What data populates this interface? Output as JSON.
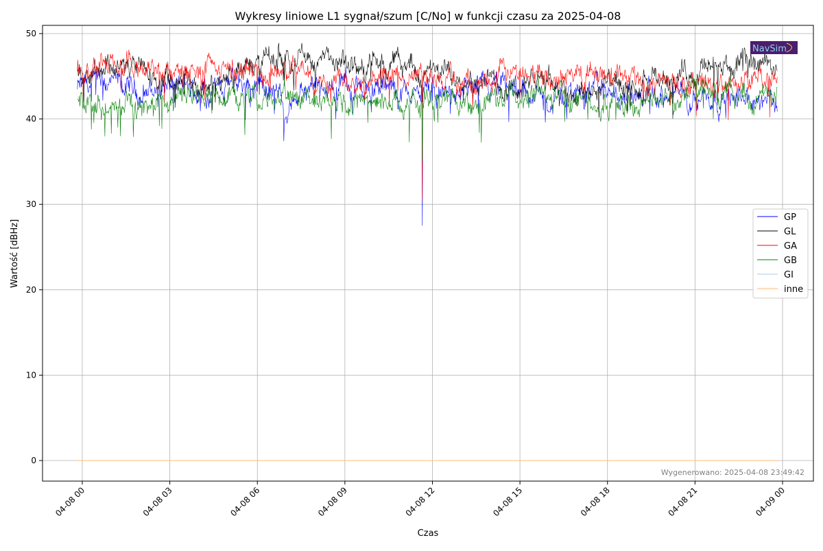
{
  "chart_data": {
    "type": "line",
    "title": "Wykresy liniowe L1 sygnał/szum [C/No] w funkcji czasu za 2025-04-08",
    "xlabel": "Czas",
    "ylabel": "Wartość [dBHz]",
    "x_unit": "hours since 2025-04-08 00:00",
    "xlim": [
      -0.45,
      25.0
    ],
    "ylim": [
      -2.5,
      51
    ],
    "grid": true,
    "legend_position": "center-right",
    "x_ticks": [
      0,
      3,
      6,
      9,
      12,
      15,
      18,
      21,
      24
    ],
    "x_tick_labels": [
      "04-08 00",
      "04-08 03",
      "04-08 06",
      "04-08 09",
      "04-08 12",
      "04-08 15",
      "04-08 18",
      "04-08 21",
      "04-09 00"
    ],
    "y_ticks": [
      0,
      10,
      20,
      30,
      40,
      50
    ],
    "y_tick_labels": [
      "0",
      "10",
      "20",
      "30",
      "40",
      "50"
    ],
    "x": [
      -0.17,
      1,
      2,
      3,
      4,
      5,
      6,
      7,
      8,
      9,
      10,
      11,
      12,
      13,
      14,
      15,
      16,
      17,
      18,
      19,
      20,
      21,
      22,
      23,
      23.82
    ],
    "series": [
      {
        "name": "GP",
        "color": "#0000ff",
        "values": [
          43.5,
          44,
          43,
          44,
          43,
          44,
          44.5,
          42,
          43,
          44,
          43.5,
          43,
          43,
          43,
          43.5,
          43.5,
          42,
          43.5,
          43.5,
          42.5,
          42.5,
          43,
          42.5,
          42,
          42
        ],
        "dip": 27.5
      },
      {
        "name": "GL",
        "color": "#000000",
        "values": [
          45.5,
          46.5,
          45.5,
          44,
          44,
          45,
          46.5,
          47.5,
          47,
          46,
          46.5,
          46.5,
          45,
          45.5,
          44,
          44,
          44.5,
          43,
          44,
          43,
          45,
          45.5,
          46,
          46.5,
          46.5
        ],
        "dip": 42
      },
      {
        "name": "GA",
        "color": "#ff0000",
        "values": [
          45.5,
          46,
          45.5,
          45.5,
          45.5,
          45.5,
          45.5,
          45.5,
          45,
          45,
          45,
          45,
          44.5,
          44.5,
          45,
          45.5,
          45,
          45,
          45,
          44.5,
          44.5,
          44,
          44,
          44.5,
          44
        ],
        "dip": 30.5
      },
      {
        "name": "GB",
        "color": "#008000",
        "values": [
          42,
          41.5,
          41.5,
          42,
          42.5,
          43,
          43,
          42.5,
          42.5,
          42.5,
          42.5,
          42,
          42,
          42,
          42,
          42.5,
          43,
          42,
          41.5,
          42,
          42.5,
          43,
          43,
          42.5,
          42
        ],
        "dip": 35
      },
      {
        "name": "GI",
        "color": "#aec7e8",
        "values": [
          0,
          0,
          0,
          0,
          0,
          0,
          0,
          0,
          0,
          0,
          0,
          0,
          0,
          0,
          0,
          0,
          0,
          0,
          0,
          0,
          0,
          0,
          0,
          0,
          0
        ]
      },
      {
        "name": "inne",
        "color": "#ffbb78",
        "values": [
          0,
          0,
          0,
          0,
          0,
          0,
          0,
          0,
          0,
          0,
          0,
          0,
          0,
          0,
          0,
          0,
          0,
          0,
          0,
          0,
          0,
          0,
          0,
          0,
          0
        ]
      }
    ],
    "dip_time": 11.65,
    "annotation": "Wygenerowano: 2025-04-08 23:49:42",
    "logo_text": "NavSim"
  }
}
